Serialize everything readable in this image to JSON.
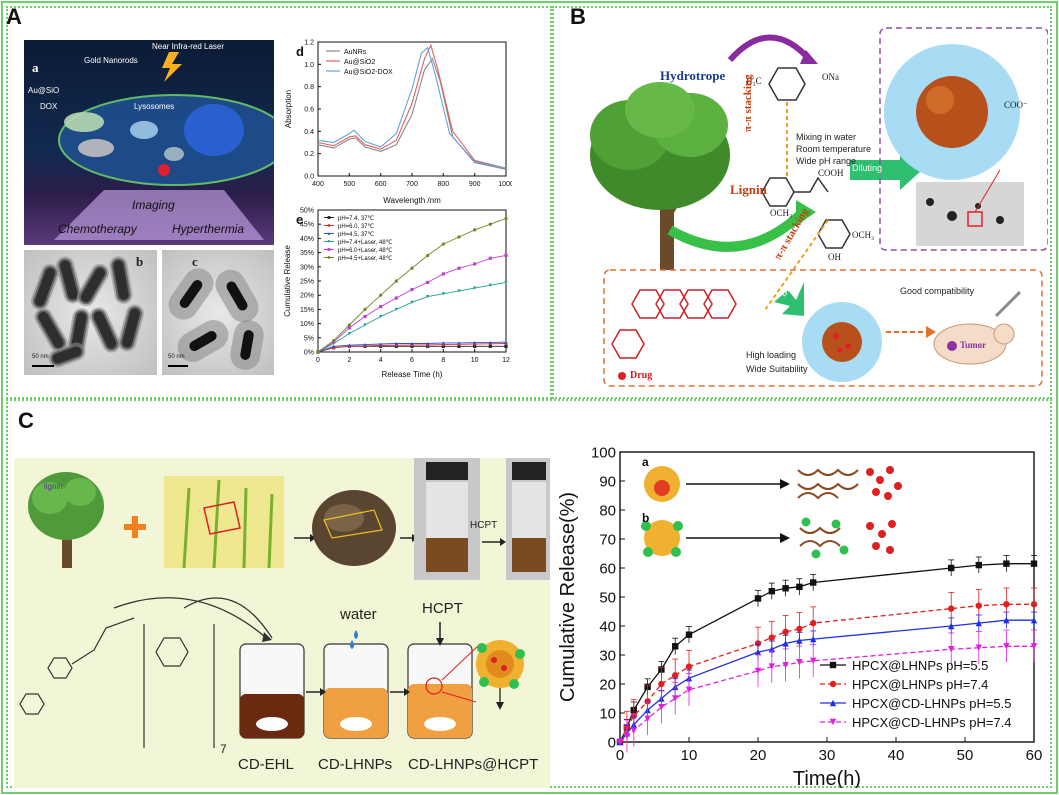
{
  "panels": {
    "A": {
      "letter": "A",
      "scheme": {
        "sub_label": "a",
        "labels": [
          "Gold Nanorods",
          "Near Infra-red Laser",
          "Au@SiO",
          "DOX",
          "Lysosomes",
          "Imaging",
          "Chemotherapy",
          "Hyperthermia"
        ]
      },
      "tem_b_label": "b",
      "tem_c_label": "c",
      "tem_scale_b": "50 nm",
      "tem_scale_c": "50 nm"
    },
    "B": {
      "letter": "B",
      "labels": {
        "hydrotrope": "Hydrotrope",
        "lignin": "Lignin",
        "pi_stacking_1": "π-π stacking",
        "pi_stacking_2": "π-π stacking",
        "mixing": "Mixing in water",
        "room_temp": "Room temperature",
        "wide_ph": "Wide pH range",
        "diluting_1": "Diluting",
        "diluting_2": "Diluting",
        "good_compat": "Good compatibility",
        "high_loading": "High loading",
        "wide_suit": "Wide Suitability",
        "drug": "Drug",
        "tumor": "Tumor",
        "h3c": "H₃C",
        "so3na": "ONa",
        "cooh": "COOH",
        "och3_1": "OCH₃",
        "och3_2": "OCH₃",
        "oh": "OH",
        "coo": "COO⁻"
      }
    },
    "C": {
      "letter": "C",
      "scheme": {
        "lignin_label": "lignin",
        "hcpt_arrow": "HCPT",
        "water": "water",
        "hcpt_top": "HCPT",
        "vial_labels": [
          "CD-EHL",
          "CD-LHNPs",
          "CD-LHNPs@HCPT"
        ],
        "subscript_7": "7"
      },
      "inset_a": "a",
      "inset_b": "b"
    }
  },
  "chart_data": [
    {
      "panel": "A-d",
      "type": "line",
      "xlabel": "Wavelength /nm",
      "ylabel": "Absorption",
      "xlim": [
        400,
        1000
      ],
      "ylim": [
        0,
        1.2
      ],
      "xticks": [
        400,
        500,
        600,
        700,
        800,
        900,
        1000
      ],
      "yticks": [
        0.0,
        0.2,
        0.4,
        0.6,
        0.8,
        1.0,
        1.2
      ],
      "sub_label": "d",
      "colors": [
        "#888888",
        "#e06060",
        "#6aa0d8"
      ],
      "series": [
        {
          "name": "AuNRs",
          "x": [
            400,
            450,
            500,
            520,
            550,
            600,
            650,
            700,
            740,
            765,
            790,
            830,
            900,
            1000
          ],
          "y": [
            0.28,
            0.25,
            0.33,
            0.34,
            0.26,
            0.22,
            0.28,
            0.55,
            0.95,
            1.05,
            0.85,
            0.35,
            0.12,
            0.06
          ]
        },
        {
          "name": "Au@SiO2",
          "x": [
            400,
            450,
            500,
            520,
            550,
            600,
            650,
            700,
            740,
            760,
            780,
            830,
            900,
            1000
          ],
          "y": [
            0.3,
            0.27,
            0.35,
            0.36,
            0.28,
            0.24,
            0.32,
            0.65,
            1.05,
            1.17,
            0.98,
            0.4,
            0.14,
            0.07
          ]
        },
        {
          "name": "Au@SiO2-DOX",
          "x": [
            400,
            450,
            500,
            515,
            550,
            600,
            650,
            700,
            730,
            750,
            775,
            820,
            900,
            1000
          ],
          "y": [
            0.32,
            0.3,
            0.38,
            0.41,
            0.31,
            0.26,
            0.38,
            0.78,
            1.1,
            1.15,
            0.9,
            0.38,
            0.13,
            0.07
          ]
        }
      ]
    },
    {
      "panel": "A-e",
      "type": "line",
      "xlabel": "Release Time (h)",
      "ylabel": "Cumulative Release",
      "xlim": [
        0,
        12
      ],
      "ylim": [
        0,
        50
      ],
      "xticks": [
        0,
        2,
        4,
        6,
        8,
        10,
        12
      ],
      "yticks": [
        "0%",
        "5%",
        "10%",
        "15%",
        "20%",
        "25%",
        "30%",
        "35%",
        "40%",
        "45%",
        "50%"
      ],
      "sub_label": "e",
      "colors": [
        "#222222",
        "#e03030",
        "#3050d0",
        "#20a090",
        "#c040d0",
        "#6a8a20"
      ],
      "series": [
        {
          "name": "pH=7.4, 37℃",
          "x": [
            0,
            1,
            2,
            3,
            4,
            5,
            6,
            7,
            8,
            9,
            10,
            11,
            12
          ],
          "y": [
            0,
            1.5,
            2,
            2,
            2,
            2,
            2,
            2,
            2,
            2,
            2,
            2,
            2
          ]
        },
        {
          "name": "pH=6.0, 37℃",
          "x": [
            0,
            1,
            2,
            3,
            4,
            5,
            6,
            7,
            8,
            9,
            10,
            11,
            12
          ],
          "y": [
            0,
            1.5,
            2,
            2.2,
            2.3,
            2.4,
            2.5,
            2.5,
            2.6,
            2.7,
            2.8,
            2.9,
            3
          ]
        },
        {
          "name": "pH=4.5, 37℃",
          "x": [
            0,
            1,
            2,
            3,
            4,
            5,
            6,
            7,
            8,
            9,
            10,
            11,
            12
          ],
          "y": [
            0,
            2,
            2.4,
            2.6,
            2.8,
            3,
            3,
            3,
            3.2,
            3.2,
            3.3,
            3.3,
            3.5
          ]
        },
        {
          "name": "pH=7.4+Laser, 48℃",
          "x": [
            0,
            1,
            2,
            3,
            4,
            5,
            6,
            7,
            8,
            9,
            10,
            11,
            12
          ],
          "y": [
            0,
            3,
            6.5,
            9.5,
            12.5,
            15,
            17.5,
            19.5,
            20.5,
            21.5,
            22.5,
            23.5,
            24.5
          ]
        },
        {
          "name": "pH=6.0+Laser, 48℃",
          "x": [
            0,
            1,
            2,
            3,
            4,
            5,
            6,
            7,
            8,
            9,
            10,
            11,
            12
          ],
          "y": [
            0,
            3.5,
            8.5,
            12.5,
            16,
            19,
            22,
            24.5,
            27.5,
            29.5,
            31,
            33,
            34
          ]
        },
        {
          "name": "pH=4.5+Laser, 48℃",
          "x": [
            0,
            1,
            2,
            3,
            4,
            5,
            6,
            7,
            8,
            9,
            10,
            11,
            12
          ],
          "y": [
            0,
            4,
            9.5,
            15,
            20,
            25,
            29.5,
            34,
            38,
            40.5,
            43,
            45,
            47
          ]
        }
      ]
    },
    {
      "panel": "C-right",
      "type": "line",
      "xlabel": "Time(h)",
      "ylabel": "Cumulative Release(%)",
      "xlim": [
        0,
        60
      ],
      "ylim": [
        0,
        100
      ],
      "xticks": [
        0,
        10,
        20,
        30,
        40,
        50,
        60
      ],
      "yticks": [
        0,
        10,
        20,
        30,
        40,
        50,
        60,
        70,
        80,
        90,
        100
      ],
      "colors": [
        "#111111",
        "#e02020",
        "#2030e0",
        "#e020e0"
      ],
      "series": [
        {
          "name": "HPCX@LHNPs pH=5.5",
          "x": [
            0,
            1,
            2,
            4,
            6,
            8,
            10,
            20,
            22,
            24,
            26,
            28,
            48,
            52,
            56,
            60
          ],
          "y": [
            0,
            5,
            11,
            19,
            25,
            33,
            37,
            49.5,
            52,
            53,
            53.5,
            55,
            60,
            61,
            61.5,
            61.5
          ]
        },
        {
          "name": "HPCX@LHNPs pH=7.4",
          "x": [
            0,
            1,
            2,
            4,
            6,
            8,
            10,
            20,
            22,
            24,
            26,
            28,
            48,
            52,
            56,
            60
          ],
          "y": [
            0,
            5,
            9,
            14,
            20,
            23,
            26,
            34,
            36,
            38,
            39,
            41,
            46,
            47,
            47.5,
            47.5
          ]
        },
        {
          "name": "HPCX@CD-LHNPs pH=5.5",
          "x": [
            0,
            1,
            2,
            4,
            6,
            8,
            10,
            20,
            22,
            24,
            26,
            28,
            48,
            52,
            56,
            60
          ],
          "y": [
            0,
            3,
            6,
            11,
            15,
            19,
            22,
            31,
            32,
            34,
            35,
            35.5,
            40,
            41,
            42,
            42
          ]
        },
        {
          "name": "HPCX@CD-LHNPs pH=7.4",
          "x": [
            0,
            1,
            2,
            4,
            6,
            8,
            10,
            20,
            22,
            24,
            26,
            28,
            48,
            52,
            56,
            60
          ],
          "y": [
            0,
            2,
            4,
            8,
            12,
            15,
            18,
            24.5,
            26,
            26.5,
            27.5,
            28,
            32,
            32.5,
            33,
            33
          ]
        }
      ],
      "legend_placement": "bottom-right"
    }
  ]
}
